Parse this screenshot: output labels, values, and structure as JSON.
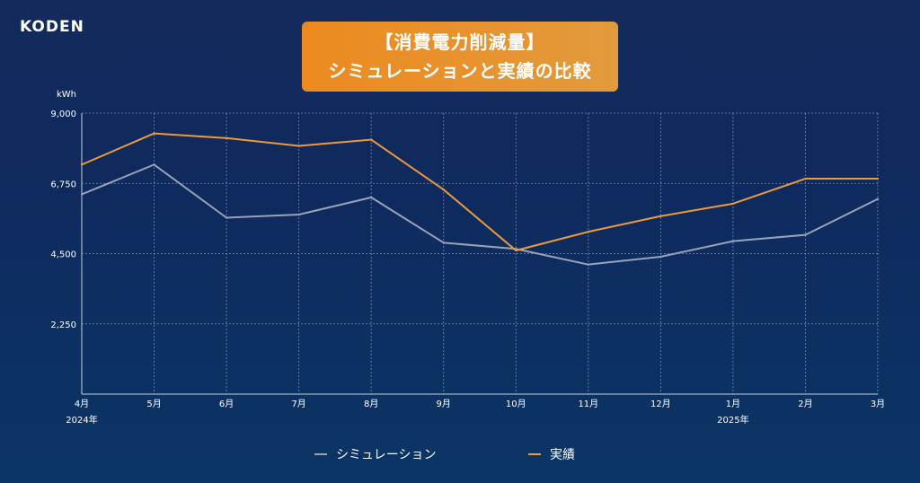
{
  "logo": "KODEN",
  "title": {
    "line1": "【消費電力削減量】",
    "line2": "シミュレーションと実績の比較"
  },
  "colors": {
    "simulation": "#9aa3b5",
    "actual": "#ef9a3a",
    "grid": "#8fa2c8",
    "axis": "#c6cfe0"
  },
  "chart_data": {
    "type": "line",
    "ylabel": "kWh",
    "ylim": [
      0,
      9000
    ],
    "yticks": [
      {
        "value": 2250,
        "label": "2,250"
      },
      {
        "value": 4500,
        "label": "4,500"
      },
      {
        "value": 6750,
        "label": "6,750"
      },
      {
        "value": 9000,
        "label": "9,000"
      }
    ],
    "categories": [
      "4月",
      "5月",
      "6月",
      "7月",
      "8月",
      "9月",
      "10月",
      "11月",
      "12月",
      "1月",
      "2月",
      "3月"
    ],
    "year_labels": [
      {
        "index": 0,
        "label": "2024年"
      },
      {
        "index": 9,
        "label": "2025年"
      }
    ],
    "grid": true,
    "legend_position": "bottom-center",
    "series": [
      {
        "name": "シミュレーション",
        "key": "simulation",
        "values": [
          6400,
          7350,
          5650,
          5750,
          6300,
          4850,
          4650,
          4150,
          4400,
          4900,
          5100,
          6250
        ]
      },
      {
        "name": "実績",
        "key": "actual",
        "values": [
          7350,
          8350,
          8200,
          7950,
          8150,
          6550,
          4600,
          5200,
          5700,
          6100,
          6900,
          6900
        ]
      }
    ]
  }
}
